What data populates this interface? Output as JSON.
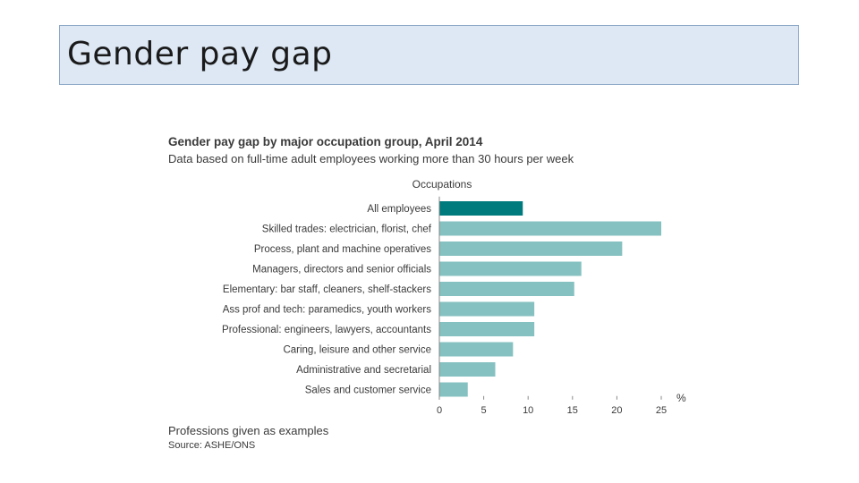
{
  "slide": {
    "title": "Gender pay gap"
  },
  "chart_data": {
    "type": "bar",
    "orientation": "horizontal",
    "title": "Gender pay gap by major occupation group, April 2014",
    "subtitle": "Data based on full-time adult employees working more than 30 hours per week",
    "category_axis_label": "Occupations",
    "value_axis_unit": "%",
    "categories": [
      "All employees",
      "Skilled trades: electrician, florist, chef",
      "Process, plant and machine operatives",
      "Managers, directors and senior officials",
      "Elementary: bar staff, cleaners, shelf-stackers",
      "Ass prof and tech: paramedics, youth workers",
      "Professional: engineers, lawyers, accountants",
      "Caring, leisure and other service",
      "Administrative and secretarial",
      "Sales and customer service"
    ],
    "values": [
      9.4,
      25.0,
      20.6,
      16.0,
      15.2,
      10.7,
      10.7,
      8.3,
      6.3,
      3.2
    ],
    "highlight_index": 0,
    "xlim": [
      0,
      25
    ],
    "xticks": [
      "0",
      "5",
      "10",
      "15",
      "20",
      "25"
    ],
    "colors": {
      "highlight": "#007b7d",
      "bar": "#86c1c1",
      "axis": "#888888",
      "text": "#3a3a3a"
    },
    "footnote": "Professions given as examples",
    "source": "Source: ASHE/ONS"
  }
}
